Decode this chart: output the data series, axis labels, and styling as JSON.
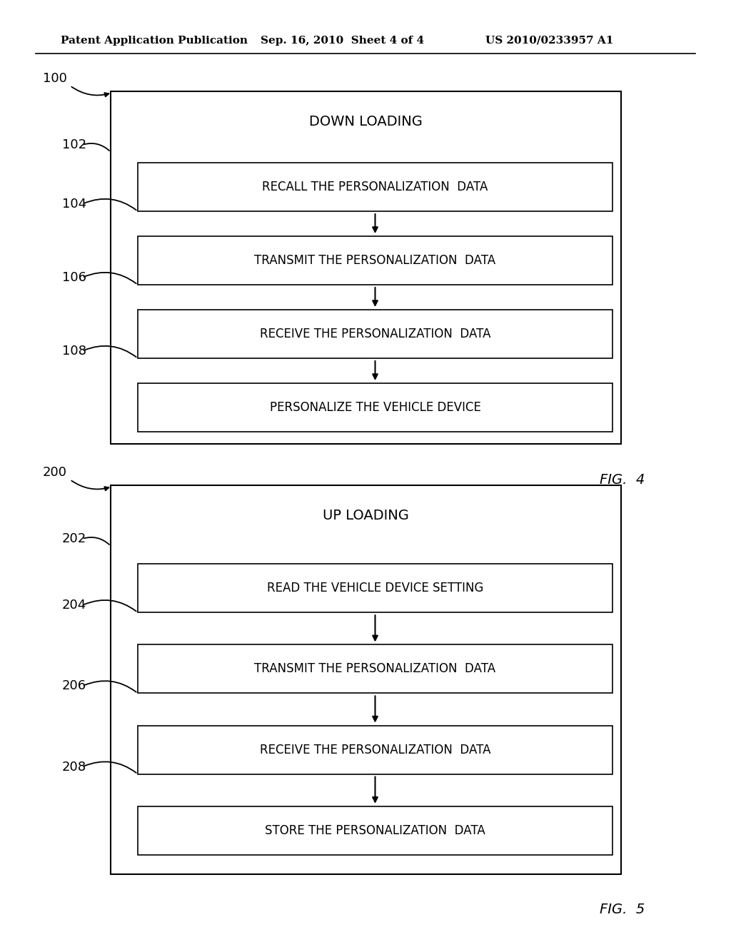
{
  "bg_color": "#ffffff",
  "header_left": "Patent Application Publication",
  "header_mid": "Sep. 16, 2010  Sheet 4 of 4",
  "header_right": "US 2010/0233957 A1",
  "fig1": {
    "outer_label": "100",
    "group_label": "102",
    "group_title": "DOWN LOADING",
    "steps": [
      {
        "label": "104",
        "text": "RECALL THE PERSONALIZATION  DATA"
      },
      {
        "label": "106",
        "text": "TRANSMIT THE PERSONALIZATION  DATA"
      },
      {
        "label": "108",
        "text": "RECEIVE THE PERSONALIZATION  DATA"
      },
      {
        "label": "",
        "text": "PERSONALIZE THE VEHICLE DEVICE"
      }
    ],
    "fig_label": "FIG.  4"
  },
  "fig2": {
    "outer_label": "200",
    "group_label": "202",
    "group_title": "UP LOADING",
    "steps": [
      {
        "label": "204",
        "text": "READ THE VEHICLE DEVICE SETTING"
      },
      {
        "label": "206",
        "text": "TRANSMIT THE PERSONALIZATION  DATA"
      },
      {
        "label": "208",
        "text": "RECEIVE THE PERSONALIZATION  DATA"
      },
      {
        "label": "",
        "text": "STORE THE PERSONALIZATION  DATA"
      }
    ],
    "fig_label": "FIG.  5"
  }
}
